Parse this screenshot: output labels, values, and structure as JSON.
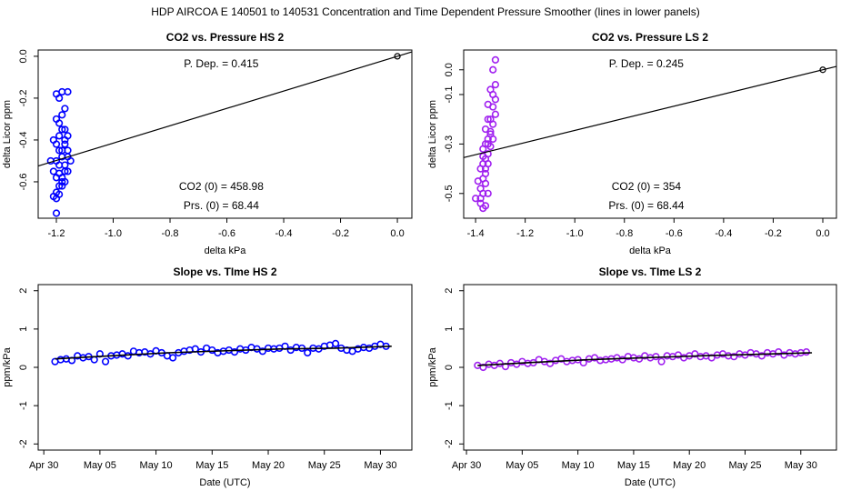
{
  "title": "HDP    AIRCOA E    140501 to 140531    Concentration and Time Dependent Pressure Smoother (lines in lower panels)",
  "chart_data": [
    {
      "type": "scatter",
      "title": "CO2 vs. Pressure HS 2",
      "xlabel": "delta kPa",
      "ylabel": "delta Licor ppm",
      "color": "#0000ff",
      "x": [
        -1.2,
        -1.19,
        -1.18,
        -1.17,
        -1.16,
        -1.2,
        -1.19,
        -1.18,
        -1.17,
        -1.16,
        -1.21,
        -1.2,
        -1.19,
        -1.18,
        -1.17,
        -1.16,
        -1.15,
        -1.2,
        -1.19,
        -1.18,
        -1.17,
        -1.16,
        -1.21,
        -1.2,
        -1.19,
        -1.18,
        -1.17,
        -1.19,
        -1.18,
        -1.2,
        -1.21,
        -1.19,
        -1.18,
        -1.17,
        -1.2,
        -1.22,
        -1.19,
        -1.18,
        -1.17,
        -1.16,
        -1.2
      ],
      "values": [
        -0.18,
        -0.2,
        -0.17,
        -0.25,
        -0.17,
        -0.3,
        -0.32,
        -0.28,
        -0.35,
        -0.38,
        -0.4,
        -0.42,
        -0.38,
        -0.45,
        -0.4,
        -0.48,
        -0.5,
        -0.5,
        -0.52,
        -0.48,
        -0.55,
        -0.45,
        -0.55,
        -0.58,
        -0.56,
        -0.6,
        -0.52,
        -0.62,
        -0.58,
        -0.65,
        -0.67,
        -0.66,
        -0.62,
        -0.6,
        -0.68,
        -0.5,
        -0.45,
        -0.35,
        -0.42,
        -0.55,
        -0.75
      ],
      "slope": 0.415,
      "ref_x": 0,
      "ref_y": 0,
      "annotations": [
        "P. Dep. =  0.415",
        "CO2 (0) =  458.98",
        "Prs. (0) =  68.44"
      ],
      "xlim": [
        -1.264,
        0.051
      ],
      "ylim": [
        -0.774,
        0.03
      ],
      "xticks": [
        -1.2,
        {
          "value": -1.0,
          "label": "-1.0"
        },
        -0.8,
        -0.6,
        -0.4,
        -0.2,
        {
          "value": 0,
          "label": "0.0"
        }
      ],
      "yticks": [
        {
          "value": 0,
          "label": "0.0"
        },
        -0.2,
        -0.4,
        -0.6
      ]
    },
    {
      "type": "scatter",
      "title": "CO2 vs. Pressure LS 2",
      "xlabel": "delta kPa",
      "ylabel": "delta Licor ppm",
      "color": "#a020f0",
      "x": [
        -1.32,
        -1.33,
        -1.32,
        -1.33,
        -1.34,
        -1.32,
        -1.33,
        -1.35,
        -1.32,
        -1.34,
        -1.33,
        -1.35,
        -1.34,
        -1.36,
        -1.33,
        -1.35,
        -1.34,
        -1.36,
        -1.37,
        -1.35,
        -1.36,
        -1.34,
        -1.37,
        -1.38,
        -1.36,
        -1.35,
        -1.37,
        -1.39,
        -1.38,
        -1.36,
        -1.37,
        -1.4,
        -1.38,
        -1.36,
        -1.35,
        -1.37,
        -1.38,
        -1.36,
        -1.37,
        -1.35
      ],
      "values": [
        0.04,
        0.0,
        -0.06,
        -0.1,
        -0.08,
        -0.12,
        -0.15,
        -0.14,
        -0.18,
        -0.2,
        -0.22,
        -0.2,
        -0.25,
        -0.24,
        -0.28,
        -0.3,
        -0.26,
        -0.3,
        -0.32,
        -0.34,
        -0.36,
        -0.31,
        -0.38,
        -0.4,
        -0.42,
        -0.38,
        -0.44,
        -0.45,
        -0.48,
        -0.46,
        -0.5,
        -0.52,
        -0.52,
        -0.55,
        -0.5,
        -0.56,
        -0.54,
        -0.4,
        -0.35,
        -0.28
      ],
      "slope": 0.245,
      "ref_x": 0,
      "ref_y": 0,
      "annotations": [
        "P. Dep. =  0.245",
        "CO2 (0) =  354",
        "Prs. (0) =  68.44"
      ],
      "xlim": [
        -1.448,
        0.055
      ],
      "ylim": [
        -0.6,
        0.08
      ],
      "xticks": [
        -1.4,
        -1.2,
        {
          "value": -1.0,
          "label": "-1.0"
        },
        -0.8,
        -0.6,
        -0.4,
        -0.2,
        {
          "value": 0,
          "label": "0.0"
        }
      ],
      "yticks": [
        {
          "value": 0,
          "label": "0.0"
        },
        -0.1,
        -0.3,
        -0.5
      ]
    },
    {
      "type": "scatter",
      "title": "Slope vs. TIme HS 2",
      "xlabel": "Date (UTC)",
      "ylabel": "ppm/kPa",
      "color": "#0000ff",
      "x": [
        1,
        1.5,
        2,
        2.5,
        3,
        3.5,
        4,
        4.5,
        5,
        5.5,
        6,
        6.5,
        7,
        7.5,
        8,
        8.5,
        9,
        9.5,
        10,
        10.5,
        11,
        11.5,
        12,
        12.5,
        13,
        13.5,
        14,
        14.5,
        15,
        15.5,
        16,
        16.5,
        17,
        17.5,
        18,
        18.5,
        19,
        19.5,
        20,
        20.5,
        21,
        21.5,
        22,
        22.5,
        23,
        23.5,
        24,
        24.5,
        25,
        25.5,
        26,
        26.5,
        27,
        27.5,
        28,
        28.5,
        29,
        29.5,
        30,
        30.5
      ],
      "values": [
        0.15,
        0.2,
        0.22,
        0.18,
        0.3,
        0.25,
        0.28,
        0.2,
        0.35,
        0.15,
        0.3,
        0.32,
        0.35,
        0.3,
        0.42,
        0.38,
        0.4,
        0.35,
        0.43,
        0.38,
        0.3,
        0.25,
        0.38,
        0.42,
        0.45,
        0.48,
        0.4,
        0.5,
        0.45,
        0.38,
        0.42,
        0.45,
        0.4,
        0.48,
        0.45,
        0.52,
        0.48,
        0.42,
        0.5,
        0.48,
        0.5,
        0.55,
        0.45,
        0.52,
        0.5,
        0.38,
        0.5,
        0.48,
        0.55,
        0.58,
        0.62,
        0.5,
        0.45,
        0.42,
        0.48,
        0.52,
        0.5,
        0.55,
        0.6,
        0.55
      ],
      "smooth_x": [
        1,
        6,
        11,
        16,
        21,
        26,
        31
      ],
      "smooth": [
        0.22,
        0.3,
        0.38,
        0.43,
        0.48,
        0.5,
        0.55
      ],
      "xlim": [
        -0.5,
        32.8
      ],
      "ylim": [
        -2.16,
        2.16
      ],
      "xticks": [
        {
          "value": 0,
          "label": "Apr 30"
        },
        {
          "value": 5,
          "label": "May 05"
        },
        {
          "value": 10,
          "label": "May 10"
        },
        {
          "value": 15,
          "label": "May 15"
        },
        {
          "value": 20,
          "label": "May 20"
        },
        {
          "value": 25,
          "label": "May 25"
        },
        {
          "value": 30,
          "label": "May 30"
        }
      ],
      "yticks": [
        -2,
        -1,
        0,
        1,
        2
      ]
    },
    {
      "type": "scatter",
      "title": "Slope vs. TIme LS 2",
      "xlabel": "Date (UTC)",
      "ylabel": "ppm/kPa",
      "color": "#a020f0",
      "x": [
        1,
        1.5,
        2,
        2.5,
        3,
        3.5,
        4,
        4.5,
        5,
        5.5,
        6,
        6.5,
        7,
        7.5,
        8,
        8.5,
        9,
        9.5,
        10,
        10.5,
        11,
        11.5,
        12,
        12.5,
        13,
        13.5,
        14,
        14.5,
        15,
        15.5,
        16,
        16.5,
        17,
        17.5,
        18,
        18.5,
        19,
        19.5,
        20,
        20.5,
        21,
        21.5,
        22,
        22.5,
        23,
        23.5,
        24,
        24.5,
        25,
        25.5,
        26,
        26.5,
        27,
        27.5,
        28,
        28.5,
        29,
        29.5,
        30,
        30.5
      ],
      "values": [
        0.05,
        0.0,
        0.08,
        0.05,
        0.1,
        0.02,
        0.12,
        0.08,
        0.15,
        0.1,
        0.12,
        0.2,
        0.15,
        0.1,
        0.18,
        0.22,
        0.15,
        0.18,
        0.2,
        0.12,
        0.22,
        0.25,
        0.18,
        0.2,
        0.22,
        0.25,
        0.2,
        0.28,
        0.25,
        0.22,
        0.3,
        0.25,
        0.28,
        0.15,
        0.3,
        0.28,
        0.32,
        0.25,
        0.3,
        0.35,
        0.28,
        0.3,
        0.25,
        0.32,
        0.35,
        0.3,
        0.28,
        0.35,
        0.32,
        0.38,
        0.35,
        0.3,
        0.38,
        0.35,
        0.4,
        0.32,
        0.38,
        0.35,
        0.38,
        0.4
      ],
      "smooth_x": [
        1,
        6,
        11,
        16,
        21,
        26,
        31
      ],
      "smooth": [
        0.05,
        0.13,
        0.2,
        0.25,
        0.3,
        0.34,
        0.38
      ],
      "xlim": [
        -0.25,
        33.2
      ],
      "ylim": [
        -2.16,
        2.16
      ],
      "xticks": [
        {
          "value": 0,
          "label": "Apr 30"
        },
        {
          "value": 5,
          "label": "May 05"
        },
        {
          "value": 10,
          "label": "May 10"
        },
        {
          "value": 15,
          "label": "May 15"
        },
        {
          "value": 20,
          "label": "May 20"
        },
        {
          "value": 25,
          "label": "May 25"
        },
        {
          "value": 30,
          "label": "May 30"
        }
      ],
      "yticks": [
        -2,
        -1,
        0,
        1,
        2
      ]
    }
  ]
}
